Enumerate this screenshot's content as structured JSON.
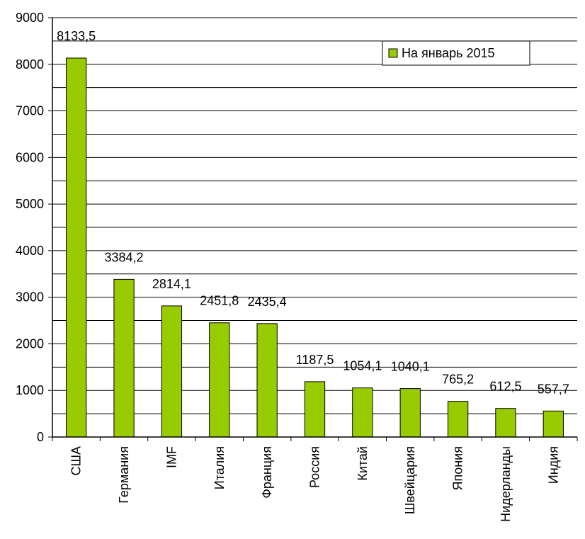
{
  "chart_data": {
    "type": "bar",
    "title": "",
    "xlabel": "",
    "ylabel": "",
    "categories": [
      "США",
      "Германия",
      "IMF",
      "Италия",
      "Франция",
      "Россия",
      "Китай",
      "Швейцария",
      "Япония",
      "Нидерланды",
      "Индия"
    ],
    "series": [
      {
        "name": "На январь 2015",
        "values": [
          8133.5,
          3384.2,
          2814.1,
          2451.8,
          2435.4,
          1187.5,
          1054.1,
          1040.1,
          765.2,
          612.5,
          557.7
        ],
        "labels": [
          "8133,5",
          "3384,2",
          "2814,1",
          "2451,8",
          "2435,4",
          "1187,5",
          "1054,1",
          "1040,1",
          "765,2",
          "612,5",
          "557,7"
        ]
      }
    ],
    "ylim": [
      0,
      9000
    ],
    "yticks": [
      "0",
      "1000",
      "2000",
      "3000",
      "4000",
      "5000",
      "6000",
      "7000",
      "8000",
      "9000"
    ],
    "grid": true,
    "legend_position": "top-right",
    "colors": {
      "bar_fill": "#99cc00",
      "bar_stroke": "#000000",
      "grid": "#000000",
      "axis": "#000000"
    }
  }
}
